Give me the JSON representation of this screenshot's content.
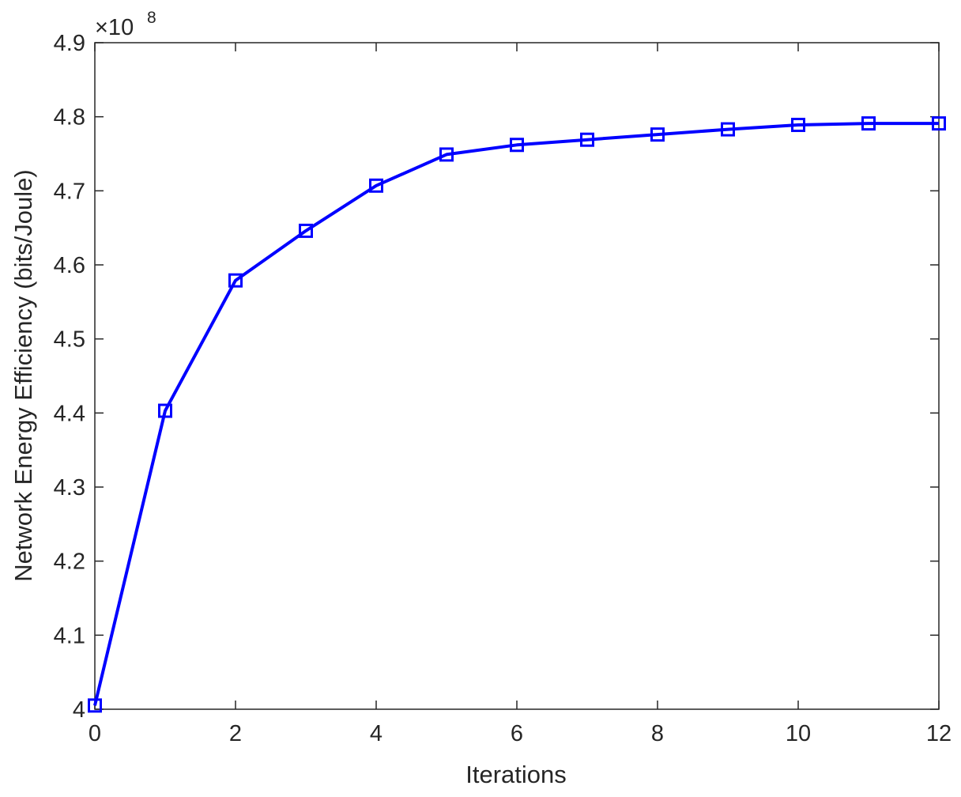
{
  "chart_data": {
    "type": "line",
    "title": "",
    "xlabel": "Iterations",
    "ylabel": "Network Energy Efficiency (bits/Joule)",
    "y_exponent_label": "×10",
    "y_exponent_power": "8",
    "xlim": [
      0,
      12
    ],
    "ylim": [
      4.0,
      4.9
    ],
    "x_ticks": [
      0,
      2,
      4,
      6,
      8,
      10,
      12
    ],
    "x_tick_labels": [
      "0",
      "2",
      "4",
      "6",
      "8",
      "10",
      "12"
    ],
    "y_ticks": [
      4.0,
      4.1,
      4.2,
      4.3,
      4.4,
      4.5,
      4.6,
      4.7,
      4.8,
      4.9
    ],
    "y_tick_labels": [
      "4",
      "4.1",
      "4.2",
      "4.3",
      "4.4",
      "4.5",
      "4.6",
      "4.7",
      "4.8",
      "4.9"
    ],
    "grid": false,
    "series": [
      {
        "marker": "square",
        "color": "#0000ff",
        "x": [
          0,
          1,
          2,
          3,
          4,
          5,
          6,
          7,
          8,
          9,
          10,
          11,
          12
        ],
        "values": [
          4.005,
          4.403,
          4.579,
          4.646,
          4.707,
          4.749,
          4.762,
          4.769,
          4.776,
          4.783,
          4.789,
          4.791,
          4.791
        ]
      }
    ]
  }
}
